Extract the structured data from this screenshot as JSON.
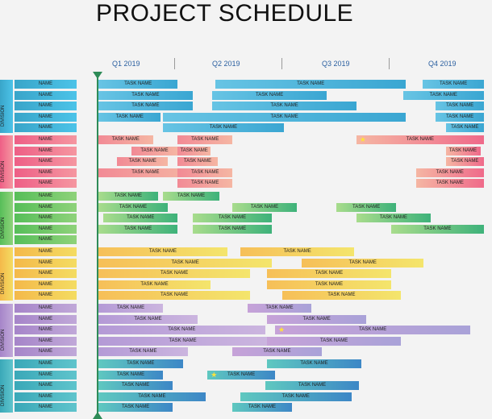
{
  "title": "PROJECT SCHEDULE",
  "quarters": [
    "Q1 2019",
    "Q2 2019",
    "Q3 2019",
    "Q4 2019"
  ],
  "division_label": "DIVISION",
  "name_label": "NAME",
  "task_label": "TASK NAME",
  "divisions": [
    {
      "color": "blue",
      "rows": [
        [
          {
            "q": [
              0,
              0.8
            ]
          },
          {
            "q": [
              1.18,
              3.1
            ]
          },
          {
            "q": [
              3.27,
              3.98
            ]
          }
        ],
        [
          {
            "q": [
              0,
              0.95
            ]
          },
          {
            "q": [
              1.15,
              2.3
            ]
          },
          {
            "q": [
              3.07,
              3.98
            ]
          }
        ],
        [
          {
            "q": [
              0,
              0.95
            ]
          },
          {
            "q": [
              1.15,
              2.6
            ]
          },
          {
            "q": [
              3.4,
              3.98
            ]
          }
        ],
        [
          {
            "q": [
              0,
              0.63
            ]
          },
          {
            "q": [
              0.65,
              3.1
            ]
          },
          {
            "q": [
              3.4,
              3.98
            ]
          }
        ],
        [
          {
            "q": [
              0,
              0
            ]
          },
          {
            "q": [
              0.65,
              1.87
            ]
          },
          {
            "q": [
              3.5,
              3.98
            ]
          }
        ]
      ]
    },
    {
      "color": "pink",
      "rows": [
        [
          {
            "q": [
              0,
              0.55
            ]
          },
          {
            "q": [
              0.8,
              1.35
            ]
          },
          {
            "q": [
              2.6,
              3.98
            ],
            "star": true
          }
        ],
        [
          {
            "q": [
              0.33,
              0.8
            ]
          },
          {
            "q": [
              0.8,
              1.13
            ]
          },
          {
            "q": [
              3.5,
              3.85
            ]
          }
        ],
        [
          {
            "q": [
              0.19,
              0.7
            ]
          },
          {
            "q": [
              0.8,
              1.2
            ]
          },
          {
            "q": [
              3.5,
              3.98
            ]
          }
        ],
        [
          {
            "q": [
              0,
              0.95
            ]
          },
          {
            "q": [
              0.8,
              1.35
            ]
          },
          {
            "q": [
              3.2,
              3.98
            ]
          }
        ],
        [
          {
            "q": [
              0,
              0
            ]
          },
          {
            "q": [
              0.8,
              1.35
            ]
          },
          {
            "q": [
              3.2,
              3.98
            ]
          }
        ]
      ]
    },
    {
      "color": "green",
      "rows": [
        [
          {
            "q": [
              0,
              0.6
            ]
          },
          {
            "q": [
              0.65,
              1.22
            ]
          },
          {
            "q": [
              0,
              0
            ]
          }
        ],
        [
          {
            "q": [
              0,
              0.7
            ]
          },
          {
            "q": [
              1.35,
              2.0
            ]
          },
          {
            "q": [
              2.4,
              3.0
            ]
          }
        ],
        [
          {
            "q": [
              0.05,
              0.8
            ]
          },
          {
            "q": [
              0.95,
              1.75
            ]
          },
          {
            "q": [
              2.6,
              3.35
            ]
          }
        ],
        [
          {
            "q": [
              0,
              0.8
            ]
          },
          {
            "q": [
              0.95,
              1.75
            ]
          },
          {
            "q": [
              2.95,
              3.98
            ]
          }
        ],
        [
          {
            "q": [
              0,
              0
            ]
          },
          {
            "q": [
              0,
              0
            ]
          },
          {
            "q": [
              0,
              0
            ]
          }
        ]
      ]
    },
    {
      "color": "yellow",
      "rows": [
        [
          {
            "q": [
              0,
              1.3
            ]
          },
          {
            "q": [
              1.43,
              2.58
            ]
          },
          {
            "q": [
              0,
              0
            ]
          }
        ],
        [
          {
            "q": [
              0,
              1.75
            ]
          },
          {
            "q": [
              2.05,
              3.28
            ]
          },
          {
            "q": [
              0,
              0
            ]
          }
        ],
        [
          {
            "q": [
              0,
              1.53
            ]
          },
          {
            "q": [
              1.7,
              2.95
            ]
          },
          {
            "q": [
              0,
              0
            ]
          }
        ],
        [
          {
            "q": [
              0,
              1.13
            ]
          },
          {
            "q": [
              1.7,
              2.95
            ]
          },
          {
            "q": [
              0,
              0
            ]
          }
        ],
        [
          {
            "q": [
              0,
              1.53
            ]
          },
          {
            "q": [
              1.85,
              3.05
            ]
          },
          {
            "q": [
              0,
              0
            ]
          }
        ]
      ]
    },
    {
      "color": "purple",
      "rows": [
        [
          {
            "q": [
              0,
              0.65
            ]
          },
          {
            "q": [
              1.5,
              2.15
            ]
          },
          {
            "q": [
              0,
              0
            ]
          }
        ],
        [
          {
            "q": [
              0,
              1.0
            ]
          },
          {
            "q": [
              1.7,
              2.7
            ]
          },
          {
            "q": [
              0,
              0
            ]
          }
        ],
        [
          {
            "q": [
              0,
              1.68
            ]
          },
          {
            "q": [
              1.78,
              3.75
            ],
            "star": true
          },
          {
            "q": [
              0,
              0
            ]
          }
        ],
        [
          {
            "q": [
              0,
              1.7
            ]
          },
          {
            "q": [
              1.7,
              3.05
            ]
          },
          {
            "q": [
              0,
              0
            ]
          }
        ],
        [
          {
            "q": [
              0,
              0.9
            ]
          },
          {
            "q": [
              1.35,
              2.25
            ]
          },
          {
            "q": [
              0,
              0
            ]
          }
        ]
      ]
    },
    {
      "color": "teal",
      "rows": [
        [
          {
            "q": [
              0,
              0.85
            ]
          },
          {
            "q": [
              1.7,
              2.65
            ]
          },
          {
            "q": [
              0,
              0
            ]
          }
        ],
        [
          {
            "q": [
              0,
              0.65
            ]
          },
          {
            "q": [
              1.1,
              1.78
            ],
            "star": true
          },
          {
            "q": [
              0,
              0
            ]
          }
        ],
        [
          {
            "q": [
              0,
              0.75
            ]
          },
          {
            "q": [
              1.68,
              2.63
            ]
          },
          {
            "q": [
              0,
              0
            ]
          }
        ],
        [
          {
            "q": [
              0,
              1.08
            ]
          },
          {
            "q": [
              1.43,
              2.55
            ]
          },
          {
            "q": [
              0,
              0
            ]
          }
        ],
        [
          {
            "q": [
              0,
              0.75
            ]
          },
          {
            "q": [
              1.35,
              1.95
            ]
          },
          {
            "q": [
              0,
              0
            ]
          }
        ]
      ]
    }
  ]
}
